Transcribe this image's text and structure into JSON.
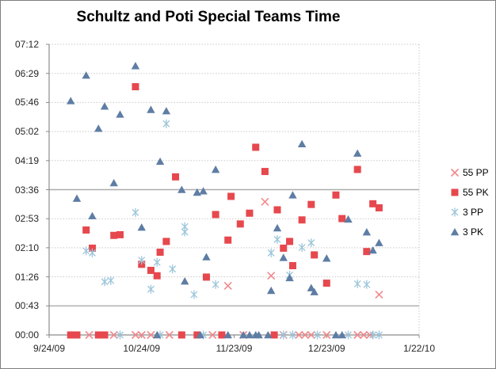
{
  "title": "Schultz and Poti Special Teams Time",
  "colors": {
    "pp55": "#f2898d",
    "pk55": "#e6484e",
    "pp3": "#9cc6da",
    "pk3": "#5e7da4",
    "grid_dotted": "#c9c9c9",
    "grid_solid": "#ababab",
    "axis": "#8c8c8c",
    "text": "#262626",
    "title_text": "#000000"
  },
  "chart_data": {
    "type": "scatter",
    "title": "Schultz and Poti Special Teams Time",
    "x_axis": {
      "tick_labels": [
        "9/24/09",
        "10/24/09",
        "11/23/09",
        "12/23/09",
        "1/22/10"
      ],
      "start_date": "9/24/09",
      "end_date": "1/22/10",
      "days_per_tick": 30,
      "total_days": 120,
      "gridlines": false
    },
    "y_axis": {
      "tick_labels": [
        "00:00",
        "00:43",
        "01:26",
        "02:10",
        "02:53",
        "03:36",
        "04:19",
        "05:02",
        "05:46",
        "06:29",
        "07:12"
      ],
      "min_seconds": 0,
      "max_seconds": 432,
      "seconds_per_tick": 43.2,
      "solid_gridline_labels": [
        "00:43",
        "03:36"
      ],
      "gridlines": true
    },
    "legend": {
      "position": "right"
    },
    "series": [
      {
        "name": "55 PP",
        "marker": "x",
        "color": "#f2898d",
        "points": [
          [
            "12/3/09",
            "03:18"
          ],
          [
            "12/5/09",
            "01:28"
          ],
          [
            "11/21/09",
            "01:13"
          ],
          [
            "1/9/10",
            "01:00"
          ],
          [
            "10/7/09",
            "00:00"
          ],
          [
            "10/15/09",
            "00:00"
          ],
          [
            "10/22/09",
            "00:00"
          ],
          [
            "10/24/09",
            "00:00"
          ],
          [
            "10/27/09",
            "00:00"
          ],
          [
            "11/2/09",
            "00:00"
          ],
          [
            "11/16/09",
            "00:00"
          ],
          [
            "11/26/09",
            "00:00"
          ],
          [
            "12/9/09",
            "00:00"
          ],
          [
            "12/14/09",
            "00:00"
          ],
          [
            "12/16/09",
            "00:00"
          ],
          [
            "12/18/09",
            "00:00"
          ],
          [
            "12/23/09",
            "00:00"
          ],
          [
            "1/2/10",
            "00:00"
          ],
          [
            "1/4/10",
            "00:00"
          ],
          [
            "1/6/10",
            "00:00"
          ]
        ]
      },
      {
        "name": "55 PK",
        "marker": "square",
        "color": "#e6484e",
        "points": [
          [
            "10/22/09",
            "06:09"
          ],
          [
            "11/30/09",
            "04:39"
          ],
          [
            "1/2/10",
            "04:06"
          ],
          [
            "12/3/09",
            "04:03"
          ],
          [
            "11/4/09",
            "03:55"
          ],
          [
            "12/26/09",
            "03:28"
          ],
          [
            "11/22/09",
            "03:26"
          ],
          [
            "1/7/10",
            "03:15"
          ],
          [
            "12/18/09",
            "03:14"
          ],
          [
            "1/9/10",
            "03:09"
          ],
          [
            "12/7/09",
            "03:06"
          ],
          [
            "11/28/09",
            "03:01"
          ],
          [
            "11/17/09",
            "02:59"
          ],
          [
            "12/28/09",
            "02:53"
          ],
          [
            "12/15/09",
            "02:51"
          ],
          [
            "11/25/09",
            "02:45"
          ],
          [
            "10/6/09",
            "02:36"
          ],
          [
            "10/17/09",
            "02:29"
          ],
          [
            "10/15/09",
            "02:28"
          ],
          [
            "11/21/09",
            "02:21"
          ],
          [
            "11/1/09",
            "02:19"
          ],
          [
            "12/11/09",
            "02:19"
          ],
          [
            "10/8/09",
            "02:09"
          ],
          [
            "12/9/09",
            "02:09"
          ],
          [
            "1/5/10",
            "02:04"
          ],
          [
            "10/30/09",
            "02:03"
          ],
          [
            "12/19/09",
            "01:59"
          ],
          [
            "10/24/09",
            "01:45"
          ],
          [
            "12/12/09",
            "01:43"
          ],
          [
            "10/27/09",
            "01:36"
          ],
          [
            "10/29/09",
            "01:28"
          ],
          [
            "11/14/09",
            "01:26"
          ],
          [
            "12/23/09",
            "01:17"
          ],
          [
            "10/1/09",
            "00:00"
          ],
          [
            "10/3/09",
            "00:00"
          ],
          [
            "10/10/09",
            "00:00"
          ],
          [
            "10/12/09",
            "00:00"
          ],
          [
            "11/6/09",
            "00:00"
          ],
          [
            "11/11/09",
            "00:00"
          ],
          [
            "11/19/09",
            "00:00"
          ],
          [
            "12/6/09",
            "00:00"
          ]
        ]
      },
      {
        "name": "3 PP",
        "marker": "asterisk",
        "color": "#9cc6da",
        "points": [
          [
            "11/1/09",
            "05:14"
          ],
          [
            "10/22/09",
            "03:02"
          ],
          [
            "11/7/09",
            "02:41"
          ],
          [
            "11/7/09",
            "02:33"
          ],
          [
            "12/7/09",
            "02:22"
          ],
          [
            "12/18/09",
            "02:17"
          ],
          [
            "12/15/09",
            "02:10"
          ],
          [
            "10/6/09",
            "02:05"
          ],
          [
            "10/8/09",
            "02:02"
          ],
          [
            "12/5/09",
            "02:02"
          ],
          [
            "10/24/09",
            "01:51"
          ],
          [
            "10/29/09",
            "01:48"
          ],
          [
            "11/3/09",
            "01:38"
          ],
          [
            "12/11/09",
            "01:29"
          ],
          [
            "10/14/09",
            "01:21"
          ],
          [
            "10/12/09",
            "01:19"
          ],
          [
            "1/2/10",
            "01:16"
          ],
          [
            "11/17/09",
            "01:15"
          ],
          [
            "1/5/10",
            "01:15"
          ],
          [
            "10/27/09",
            "01:08"
          ],
          [
            "11/10/09",
            "01:00"
          ],
          [
            "10/17/09",
            "00:00"
          ],
          [
            "10/30/09",
            "00:00"
          ],
          [
            "11/13/09",
            "00:00"
          ],
          [
            "12/9/09",
            "00:00"
          ],
          [
            "12/12/09",
            "00:00"
          ],
          [
            "12/20/09",
            "00:00"
          ],
          [
            "12/30/09",
            "00:00"
          ],
          [
            "1/7/10",
            "00:00"
          ],
          [
            "1/9/10",
            "00:00"
          ]
        ]
      },
      {
        "name": "3 PK",
        "marker": "triangle",
        "color": "#5e7da4",
        "points": [
          [
            "10/22/09",
            "06:40"
          ],
          [
            "10/6/09",
            "06:26"
          ],
          [
            "10/1/09",
            "05:48"
          ],
          [
            "10/12/09",
            "05:40"
          ],
          [
            "10/27/09",
            "05:35"
          ],
          [
            "11/1/09",
            "05:33"
          ],
          [
            "10/17/09",
            "05:28"
          ],
          [
            "10/10/09",
            "05:07"
          ],
          [
            "12/15/09",
            "04:44"
          ],
          [
            "1/2/10",
            "04:30"
          ],
          [
            "10/30/09",
            "04:18"
          ],
          [
            "11/17/09",
            "04:06"
          ],
          [
            "10/15/09",
            "03:46"
          ],
          [
            "11/6/09",
            "03:36"
          ],
          [
            "11/13/09",
            "03:34"
          ],
          [
            "11/11/09",
            "03:32"
          ],
          [
            "12/12/09",
            "03:28"
          ],
          [
            "10/3/09",
            "03:23"
          ],
          [
            "10/8/09",
            "02:57"
          ],
          [
            "12/30/09",
            "02:52"
          ],
          [
            "10/24/09",
            "02:40"
          ],
          [
            "12/7/09",
            "02:39"
          ],
          [
            "1/5/10",
            "02:33"
          ],
          [
            "1/9/10",
            "02:17"
          ],
          [
            "1/7/10",
            "02:06"
          ],
          [
            "11/14/09",
            "01:56"
          ],
          [
            "12/9/09",
            "01:55"
          ],
          [
            "12/23/09",
            "01:54"
          ],
          [
            "12/11/09",
            "01:25"
          ],
          [
            "11/7/09",
            "01:20"
          ],
          [
            "12/18/09",
            "01:10"
          ],
          [
            "12/5/09",
            "01:06"
          ],
          [
            "12/19/09",
            "01:04"
          ],
          [
            "10/29/09",
            "00:00"
          ],
          [
            "11/12/09",
            "00:00"
          ],
          [
            "11/21/09",
            "00:00"
          ],
          [
            "11/26/09",
            "00:00"
          ],
          [
            "11/28/09",
            "00:00"
          ],
          [
            "11/30/09",
            "00:00"
          ],
          [
            "12/1/09",
            "00:00"
          ],
          [
            "12/4/09",
            "00:00"
          ],
          [
            "12/26/09",
            "00:00"
          ],
          [
            "12/28/09",
            "00:00"
          ]
        ]
      }
    ]
  }
}
